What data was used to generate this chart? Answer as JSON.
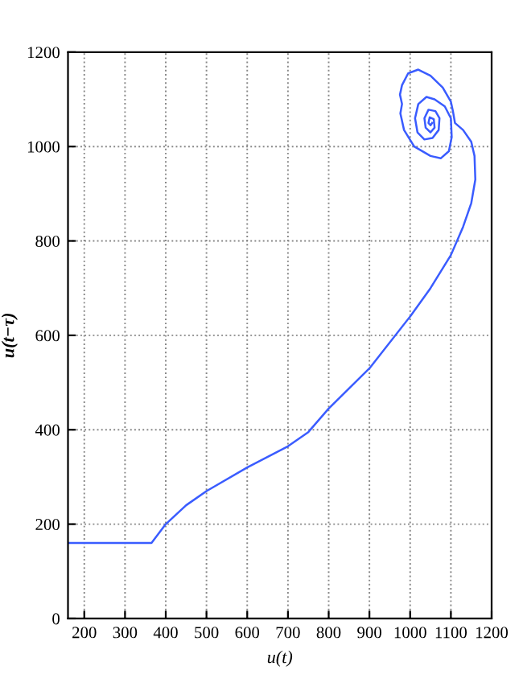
{
  "chart_data": {
    "type": "line",
    "xlabel": "u(t)",
    "ylabel": "u(t−τ)",
    "xlim": [
      160,
      1200
    ],
    "ylim": [
      0,
      1200
    ],
    "xticks": [
      200,
      300,
      400,
      500,
      600,
      700,
      800,
      900,
      1000,
      1100,
      1200
    ],
    "yticks": [
      0,
      200,
      400,
      600,
      800,
      1000,
      1200
    ],
    "grid": true,
    "line_style": "solid",
    "marker": "none",
    "series": [
      {
        "color": "#3a5cff",
        "x": [
          160,
          365,
          400,
          450,
          500,
          600,
          700,
          750,
          800,
          900,
          1000,
          1050,
          1100,
          1130,
          1150,
          1160,
          1158,
          1150,
          1130,
          1110,
          1105,
          1100,
          1080,
          1050,
          1020,
          995,
          980,
          975,
          980,
          976,
          985,
          1010,
          1050,
          1075,
          1095,
          1102,
          1100,
          1085,
          1060,
          1040,
          1020,
          1012,
          1018,
          1035,
          1055,
          1070,
          1072,
          1062,
          1045,
          1035,
          1038,
          1050,
          1060,
          1058,
          1048,
          1045,
          1050,
          1054
        ],
        "values": [
          160,
          160,
          200,
          240,
          270,
          320,
          365,
          395,
          445,
          530,
          640,
          700,
          770,
          830,
          880,
          930,
          980,
          1010,
          1035,
          1050,
          1075,
          1095,
          1125,
          1150,
          1163,
          1155,
          1130,
          1110,
          1090,
          1070,
          1035,
          1000,
          980,
          975,
          990,
          1020,
          1060,
          1085,
          1100,
          1105,
          1090,
          1060,
          1030,
          1015,
          1018,
          1035,
          1060,
          1075,
          1078,
          1060,
          1040,
          1030,
          1040,
          1058,
          1062,
          1050,
          1045,
          1050
        ]
      }
    ]
  }
}
